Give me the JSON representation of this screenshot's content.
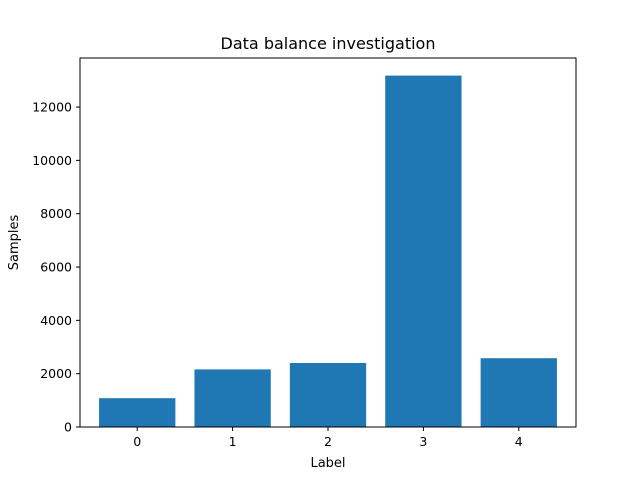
{
  "chart_data": {
    "type": "bar",
    "title": "Data balance investigation",
    "xlabel": "Label",
    "ylabel": "Samples",
    "categories": [
      "0",
      "1",
      "2",
      "3",
      "4"
    ],
    "values": [
      1080,
      2160,
      2400,
      13180,
      2580
    ],
    "ylim": [
      0,
      13840
    ],
    "yticks": [
      {
        "value": 0,
        "label": "0"
      },
      {
        "value": 2000,
        "label": "2000"
      },
      {
        "value": 4000,
        "label": "4000"
      },
      {
        "value": 6000,
        "label": "6000"
      },
      {
        "value": 8000,
        "label": "8000"
      },
      {
        "value": 10000,
        "label": "10000"
      },
      {
        "value": 12000,
        "label": "12000"
      }
    ],
    "grid": false,
    "bar_color": "#1f77b4"
  }
}
